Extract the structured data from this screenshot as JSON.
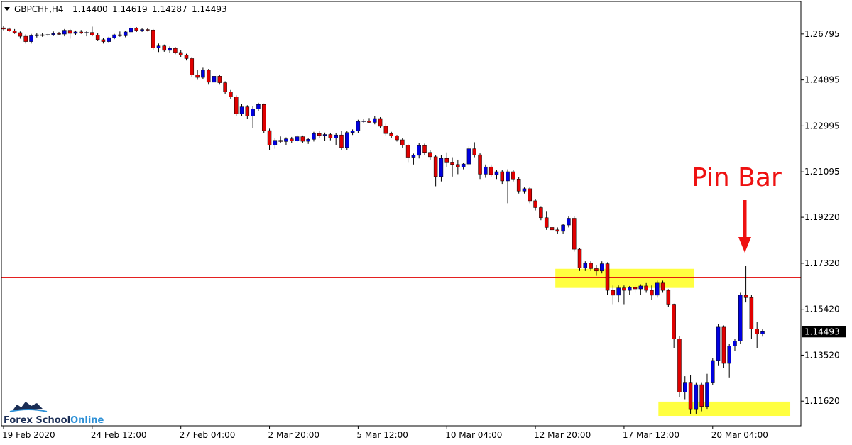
{
  "chart_data": {
    "type": "candlestick",
    "header": {
      "symbol": "GBPCHF,H4",
      "value_labels": [
        "1.14400",
        "1.14619",
        "1.14287",
        "1.14493"
      ]
    },
    "annotation": "Pin Bar",
    "watermark": [
      "Forex School",
      "Online"
    ],
    "up_color": "#0000e0",
    "down_color": "#e00000",
    "wick_color": "#000000",
    "level_line": 1.1674,
    "level_color": "#e00000",
    "zones": [
      {
        "x": [
          99.6,
          124.7
        ],
        "y": [
          1.163,
          1.1709
        ]
      },
      {
        "x": [
          118.2,
          142
        ],
        "y": [
          1.1101,
          1.116
        ]
      }
    ],
    "zone_color": "#ffff40",
    "ylim": [
      1.106,
      1.2814
    ],
    "yticks": [
      1.26795,
      1.24895,
      1.22995,
      1.21095,
      {
        "value": 1.1922,
        "label": "1.19220"
      },
      {
        "value": 1.1732,
        "label": "1.17320"
      },
      {
        "value": 1.1542,
        "label": "1.15420"
      },
      {
        "value": 1.1352,
        "label": "1.13520"
      },
      {
        "value": 1.1162,
        "label": "1.11620"
      }
    ],
    "grid": false,
    "categories": [
      "19 Feb 2020",
      null,
      null,
      null,
      null,
      null,
      null,
      null,
      null,
      null,
      null,
      null,
      null,
      null,
      null,
      null,
      "24 Feb 12:00",
      null,
      null,
      null,
      null,
      null,
      null,
      null,
      null,
      null,
      null,
      null,
      null,
      null,
      null,
      null,
      "27 Feb 04:00",
      null,
      null,
      null,
      null,
      null,
      null,
      null,
      null,
      null,
      null,
      null,
      null,
      null,
      null,
      null,
      "2 Mar 20:00",
      null,
      null,
      null,
      null,
      null,
      null,
      null,
      null,
      null,
      null,
      null,
      null,
      null,
      null,
      null,
      "5 Mar 12:00",
      null,
      null,
      null,
      null,
      null,
      null,
      null,
      null,
      null,
      null,
      null,
      null,
      null,
      null,
      null,
      "10 Mar 04:00",
      null,
      null,
      null,
      null,
      null,
      null,
      null,
      null,
      null,
      null,
      null,
      null,
      null,
      null,
      null,
      "12 Mar 20:00",
      null,
      null,
      null,
      null,
      null,
      null,
      null,
      null,
      null,
      null,
      null,
      null,
      null,
      null,
      null,
      "17 Mar 12:00",
      null,
      null,
      null,
      null,
      null,
      null,
      null,
      null,
      null,
      null,
      null,
      null,
      null,
      null,
      null,
      "20 Mar 04:00",
      null,
      null,
      null,
      null,
      null,
      null,
      null,
      null,
      null
    ],
    "ohlc": [
      [
        1.2705,
        1.2712,
        1.2695,
        1.27
      ],
      [
        1.27,
        1.2706,
        1.2688,
        1.2692
      ],
      [
        1.2692,
        1.27,
        1.268,
        1.2685
      ],
      [
        1.2685,
        1.269,
        1.266,
        1.267
      ],
      [
        1.267,
        1.2678,
        1.264,
        1.2648
      ],
      [
        1.2648,
        1.268,
        1.264,
        1.2672
      ],
      [
        1.2672,
        1.2682,
        1.2665,
        1.2676
      ],
      [
        1.2676,
        1.2684,
        1.2668,
        1.2674
      ],
      [
        1.2674,
        1.268,
        1.267,
        1.2677
      ],
      [
        1.2677,
        1.269,
        1.2671,
        1.2681
      ],
      [
        1.2681,
        1.2688,
        1.2675,
        1.2679
      ],
      [
        1.2679,
        1.27,
        1.267,
        1.2695
      ],
      [
        1.2695,
        1.27,
        1.266,
        1.2682
      ],
      [
        1.2682,
        1.2694,
        1.2676,
        1.2688
      ],
      [
        1.2688,
        1.2696,
        1.268,
        1.2684
      ],
      [
        1.2684,
        1.2692,
        1.267,
        1.2686
      ],
      [
        1.2686,
        1.271,
        1.267,
        1.2675
      ],
      [
        1.2675,
        1.2682,
        1.265,
        1.2656
      ],
      [
        1.2656,
        1.2662,
        1.264,
        1.2648
      ],
      [
        1.2648,
        1.2668,
        1.2644,
        1.2664
      ],
      [
        1.2664,
        1.268,
        1.2658,
        1.2676
      ],
      [
        1.2676,
        1.269,
        1.2668,
        1.2672
      ],
      [
        1.2672,
        1.2692,
        1.2666,
        1.2688
      ],
      [
        1.2688,
        1.2712,
        1.268,
        1.2703
      ],
      [
        1.2703,
        1.2708,
        1.2688,
        1.2694
      ],
      [
        1.2694,
        1.2704,
        1.2688,
        1.2698
      ],
      [
        1.2698,
        1.2705,
        1.269,
        1.2696
      ],
      [
        1.2696,
        1.27,
        1.2615,
        1.2622
      ],
      [
        1.2622,
        1.264,
        1.2605,
        1.263
      ],
      [
        1.263,
        1.2636,
        1.2606,
        1.2612
      ],
      [
        1.2612,
        1.2628,
        1.26,
        1.262
      ],
      [
        1.262,
        1.2626,
        1.2596,
        1.2603
      ],
      [
        1.2603,
        1.2612,
        1.2585,
        1.2592
      ],
      [
        1.2592,
        1.2598,
        1.257,
        1.2578
      ],
      [
        1.2578,
        1.2584,
        1.25,
        1.251
      ],
      [
        1.251,
        1.253,
        1.249,
        1.25
      ],
      [
        1.25,
        1.254,
        1.2494,
        1.253
      ],
      [
        1.253,
        1.2535,
        1.247,
        1.248
      ],
      [
        1.248,
        1.2515,
        1.2472,
        1.2505
      ],
      [
        1.2505,
        1.2512,
        1.247,
        1.2478
      ],
      [
        1.2478,
        1.2484,
        1.243,
        1.244
      ],
      [
        1.244,
        1.2448,
        1.241,
        1.242
      ],
      [
        1.242,
        1.2426,
        1.234,
        1.235
      ],
      [
        1.235,
        1.239,
        1.234,
        1.2378
      ],
      [
        1.2378,
        1.2385,
        1.233,
        1.234
      ],
      [
        1.234,
        1.238,
        1.229,
        1.237
      ],
      [
        1.237,
        1.2395,
        1.236,
        1.2388
      ],
      [
        1.2388,
        1.2392,
        1.227,
        1.228
      ],
      [
        1.228,
        1.2288,
        1.22,
        1.222
      ],
      [
        1.222,
        1.225,
        1.2205,
        1.224
      ],
      [
        1.224,
        1.2256,
        1.2228,
        1.2235
      ],
      [
        1.2235,
        1.2252,
        1.222,
        1.2246
      ],
      [
        1.2246,
        1.2254,
        1.223,
        1.2238
      ],
      [
        1.2238,
        1.2262,
        1.2232,
        1.2255
      ],
      [
        1.2255,
        1.226,
        1.223,
        1.2236
      ],
      [
        1.2236,
        1.225,
        1.2225,
        1.2244
      ],
      [
        1.2244,
        1.2275,
        1.2235,
        1.2268
      ],
      [
        1.2268,
        1.228,
        1.225,
        1.226
      ],
      [
        1.226,
        1.2272,
        1.2238,
        1.2264
      ],
      [
        1.2264,
        1.227,
        1.224,
        1.225
      ],
      [
        1.225,
        1.227,
        1.222,
        1.2262
      ],
      [
        1.2262,
        1.2278,
        1.22,
        1.221
      ],
      [
        1.221,
        1.228,
        1.22,
        1.2272
      ],
      [
        1.2272,
        1.2285,
        1.2262,
        1.2278
      ],
      [
        1.2278,
        1.2325,
        1.227,
        1.2318
      ],
      [
        1.2318,
        1.2328,
        1.231,
        1.232
      ],
      [
        1.232,
        1.2332,
        1.231,
        1.2314
      ],
      [
        1.2314,
        1.234,
        1.2306,
        1.233
      ],
      [
        1.233,
        1.2336,
        1.229,
        1.2298
      ],
      [
        1.2298,
        1.2308,
        1.226,
        1.2268
      ],
      [
        1.2268,
        1.2275,
        1.225,
        1.2258
      ],
      [
        1.2258,
        1.2262,
        1.2235,
        1.2242
      ],
      [
        1.2242,
        1.225,
        1.221,
        1.222
      ],
      [
        1.222,
        1.2225,
        1.215,
        1.217
      ],
      [
        1.217,
        1.2185,
        1.214,
        1.2178
      ],
      [
        1.2178,
        1.223,
        1.2165,
        1.2218
      ],
      [
        1.2218,
        1.2226,
        1.218,
        1.219
      ],
      [
        1.219,
        1.2198,
        1.216,
        1.2172
      ],
      [
        1.2172,
        1.218,
        1.205,
        1.209
      ],
      [
        1.209,
        1.218,
        1.207,
        1.2165
      ],
      [
        1.2165,
        1.219,
        1.213,
        1.215
      ],
      [
        1.215,
        1.217,
        1.209,
        1.214
      ],
      [
        1.214,
        1.216,
        1.21,
        1.213
      ],
      [
        1.213,
        1.2148,
        1.212,
        1.2142
      ],
      [
        1.2142,
        1.2215,
        1.2136,
        1.2205
      ],
      [
        1.2205,
        1.2232,
        1.217,
        1.218
      ],
      [
        1.218,
        1.2186,
        1.208,
        1.21
      ],
      [
        1.21,
        1.214,
        1.2085,
        1.213
      ],
      [
        1.213,
        1.214,
        1.209,
        1.2098
      ],
      [
        1.2098,
        1.2118,
        1.208,
        1.211
      ],
      [
        1.211,
        1.2116,
        1.206,
        1.2072
      ],
      [
        1.2072,
        1.212,
        1.198,
        1.211
      ],
      [
        1.211,
        1.2118,
        1.207,
        1.208
      ],
      [
        1.208,
        1.2088,
        1.202,
        1.203
      ],
      [
        1.203,
        1.2045,
        1.202,
        1.204
      ],
      [
        1.204,
        1.2046,
        1.198,
        1.199
      ],
      [
        1.199,
        1.1998,
        1.195,
        1.1962
      ],
      [
        1.1962,
        1.1968,
        1.191,
        1.192
      ],
      [
        1.192,
        1.1945,
        1.187,
        1.188
      ],
      [
        1.188,
        1.19,
        1.186,
        1.187
      ],
      [
        1.187,
        1.188,
        1.1855,
        1.1864
      ],
      [
        1.1864,
        1.1895,
        1.1855,
        1.189
      ],
      [
        1.189,
        1.1925,
        1.188,
        1.1918
      ],
      [
        1.1918,
        1.1925,
        1.178,
        1.179
      ],
      [
        1.179,
        1.1796,
        1.17,
        1.1712
      ],
      [
        1.1712,
        1.174,
        1.17,
        1.1732
      ],
      [
        1.1732,
        1.174,
        1.17,
        1.171
      ],
      [
        1.171,
        1.1725,
        1.168,
        1.17
      ],
      [
        1.17,
        1.174,
        1.169,
        1.173
      ],
      [
        1.173,
        1.1736,
        1.16,
        1.162
      ],
      [
        1.162,
        1.164,
        1.156,
        1.16
      ],
      [
        1.16,
        1.164,
        1.157,
        1.163
      ],
      [
        1.163,
        1.164,
        1.156,
        1.162
      ],
      [
        1.162,
        1.1638,
        1.16,
        1.1632
      ],
      [
        1.1632,
        1.1642,
        1.161,
        1.1626
      ],
      [
        1.1626,
        1.1645,
        1.16,
        1.1638
      ],
      [
        1.1638,
        1.165,
        1.161,
        1.162
      ],
      [
        1.162,
        1.164,
        1.158,
        1.16
      ],
      [
        1.16,
        1.166,
        1.159,
        1.165
      ],
      [
        1.165,
        1.166,
        1.161,
        1.162
      ],
      [
        1.162,
        1.1625,
        1.155,
        1.156
      ],
      [
        1.156,
        1.1565,
        1.138,
        1.142
      ],
      [
        1.142,
        1.143,
        1.118,
        1.12
      ],
      [
        1.12,
        1.1265,
        1.117,
        1.124
      ],
      [
        1.124,
        1.127,
        1.111,
        1.113
      ],
      [
        1.113,
        1.124,
        1.111,
        1.123
      ],
      [
        1.123,
        1.124,
        1.112,
        1.114
      ],
      [
        1.114,
        1.1275,
        1.113,
        1.124
      ],
      [
        1.124,
        1.134,
        1.123,
        1.133
      ],
      [
        1.133,
        1.148,
        1.131,
        1.1468
      ],
      [
        1.1468,
        1.1475,
        1.13,
        1.1318
      ],
      [
        1.1318,
        1.14,
        1.126,
        1.139
      ],
      [
        1.139,
        1.142,
        1.137,
        1.141
      ],
      [
        1.141,
        1.161,
        1.14,
        1.16
      ],
      [
        1.16,
        1.172,
        1.157,
        1.159
      ],
      [
        1.159,
        1.16,
        1.142,
        1.146
      ],
      [
        1.146,
        1.149,
        1.138,
        1.144
      ],
      [
        1.144,
        1.14619,
        1.14287,
        1.14493
      ]
    ]
  }
}
